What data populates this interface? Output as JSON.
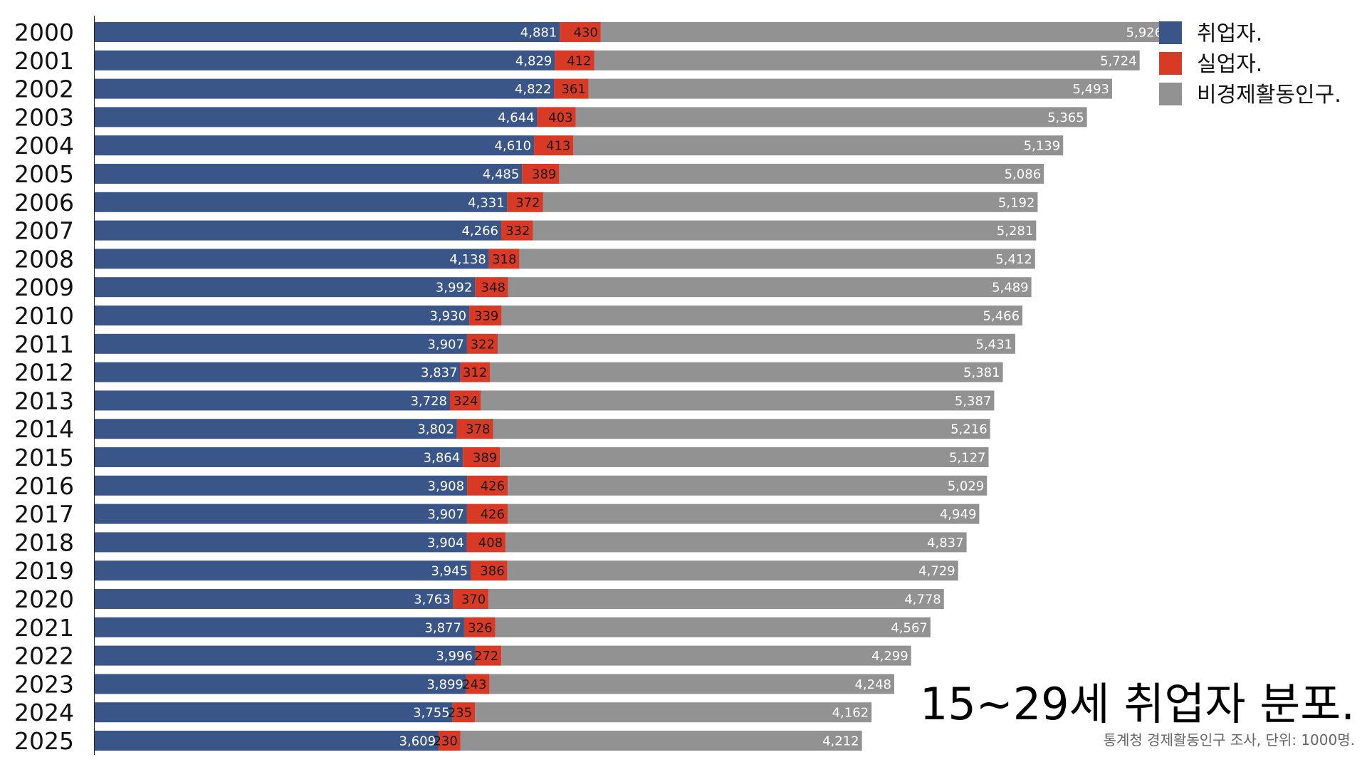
{
  "chart_data": {
    "type": "bar",
    "orientation": "horizontal",
    "stacked": true,
    "title": "15~29세 취업자 분포.",
    "subtitle": "통계청 경제활동인구 조사, 단위: 1000명.",
    "categories": [
      "2000",
      "2001",
      "2002",
      "2003",
      "2004",
      "2005",
      "2006",
      "2007",
      "2008",
      "2009",
      "2010",
      "2011",
      "2012",
      "2013",
      "2014",
      "2015",
      "2016",
      "2017",
      "2018",
      "2019",
      "2020",
      "2021",
      "2022",
      "2023",
      "2024",
      "2025"
    ],
    "series": [
      {
        "name": "취업자.",
        "color": "#3a5587",
        "values": [
          4881,
          4829,
          4822,
          4644,
          4610,
          4485,
          4331,
          4266,
          4138,
          3992,
          3930,
          3907,
          3837,
          3728,
          3802,
          3864,
          3908,
          3907,
          3904,
          3945,
          3763,
          3877,
          3996,
          3899,
          3755,
          3609
        ]
      },
      {
        "name": "실업자.",
        "color": "#d93a26",
        "values": [
          430,
          412,
          361,
          403,
          413,
          389,
          372,
          332,
          318,
          348,
          339,
          322,
          312,
          324,
          378,
          389,
          426,
          426,
          408,
          386,
          370,
          326,
          272,
          243,
          235,
          230
        ]
      },
      {
        "name": "비경제활동인구.",
        "color": "#929292",
        "values": [
          5926,
          5724,
          5493,
          5365,
          5139,
          5086,
          5192,
          5281,
          5412,
          5489,
          5466,
          5431,
          5381,
          5387,
          5216,
          5127,
          5029,
          4949,
          4837,
          4729,
          4778,
          4567,
          4299,
          4248,
          4162,
          4212
        ]
      }
    ],
    "legend_position": "top-right",
    "grid": false
  }
}
